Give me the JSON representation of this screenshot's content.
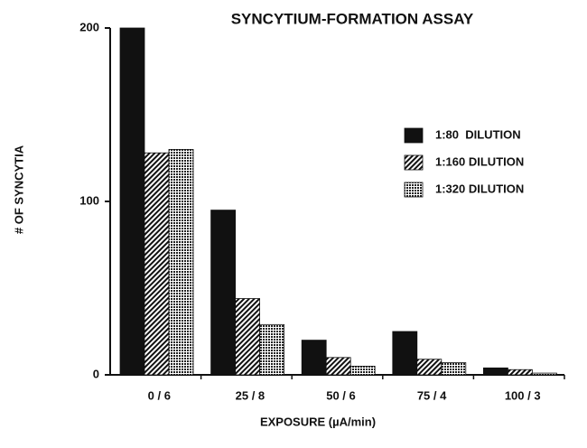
{
  "chart_data": {
    "type": "bar",
    "title": "SYNCYTIUM-FORMATION ASSAY",
    "x_label": "EXPOSURE (µA/min)",
    "y_label": "# OF SYNCYTIA",
    "categories": [
      "0 / 6",
      "25 / 8",
      "50 / 6",
      "75 / 4",
      "100 / 3"
    ],
    "series": [
      {
        "name": "1:80  DILUTION",
        "color": "#111111",
        "pattern": "solid",
        "values": [
          200,
          95,
          20,
          25,
          4
        ]
      },
      {
        "name": "1:160 DILUTION",
        "color": "#111111",
        "pattern": "diagonal",
        "values": [
          128,
          44,
          10,
          9,
          3
        ]
      },
      {
        "name": "1:320 DILUTION",
        "color": "#111111",
        "pattern": "dots",
        "values": [
          130,
          29,
          5,
          7,
          1
        ]
      }
    ],
    "ylim": [
      0,
      200
    ],
    "yticks": [
      0,
      100,
      200
    ],
    "grid": false
  }
}
